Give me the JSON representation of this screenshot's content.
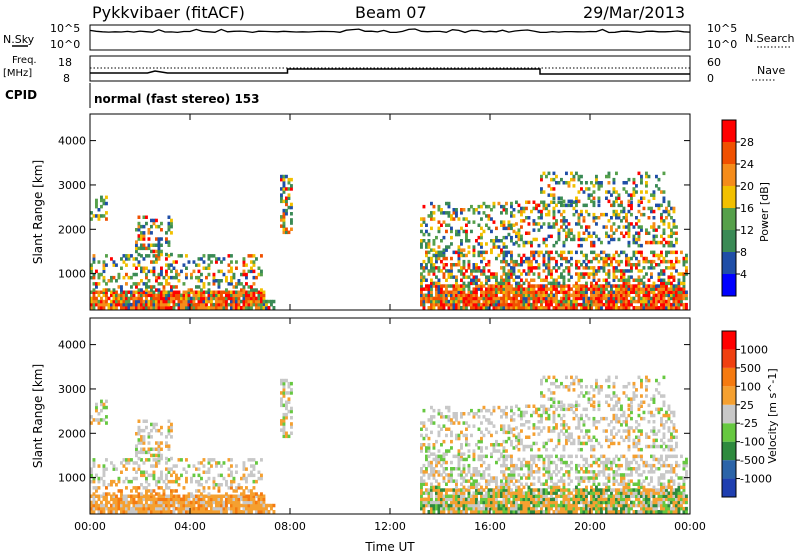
{
  "header": {
    "station": "Pykkvibaer (fitACF)",
    "beam": "Beam 07",
    "date": "29/Mar/2013"
  },
  "top_panels": {
    "nsky": {
      "left_label": "N.Sky",
      "right_label": "N.Search",
      "left_ticks": [
        "10^5",
        "10^0"
      ],
      "right_ticks": [
        "10^5",
        "10^0"
      ]
    },
    "freq": {
      "left_label_1": "Freq.",
      "left_label_2": "[MHz]",
      "right_label": "Nave",
      "left_ticks": [
        "18",
        "8"
      ],
      "right_ticks": [
        "60",
        "0"
      ]
    },
    "cpid": {
      "label": "CPID",
      "value": "normal (fast stereo) 153"
    }
  },
  "chart_data": [
    {
      "type": "heatmap",
      "name": "power",
      "ylabel": "Slant Range [km]",
      "ylim": [
        180,
        4600
      ],
      "yticks": [
        1000,
        2000,
        3000,
        4000
      ],
      "xlim": [
        0,
        24
      ],
      "xticks": [
        0,
        4,
        8,
        12,
        16,
        20,
        24
      ],
      "colorbar": {
        "label": "Power [dB]",
        "ticks": [
          "4",
          "8",
          "12",
          "16",
          "20",
          "24",
          "28"
        ],
        "colors": [
          "#0000ff",
          "#1f4ea7",
          "#3a8a55",
          "#56a04a",
          "#f2c000",
          "#f58c1a",
          "#f05000",
          "#ff0000"
        ]
      }
    },
    {
      "type": "heatmap",
      "name": "velocity",
      "ylabel": "Slant Range [km]",
      "xlabel": "Time UT",
      "ylim": [
        180,
        4600
      ],
      "yticks": [
        1000,
        2000,
        3000,
        4000
      ],
      "xlim": [
        0,
        24
      ],
      "xticks": [
        0,
        4,
        8,
        12,
        16,
        20,
        24
      ],
      "xticklabels": [
        "00:00",
        "04:00",
        "08:00",
        "12:00",
        "16:00",
        "20:00",
        "00:00"
      ],
      "colorbar": {
        "label": "Velocity [m s^-1]",
        "ticks": [
          "1000",
          "500",
          "100",
          "25",
          "-25",
          "-100",
          "-500",
          "-1000"
        ],
        "colors": [
          "#1f3fb0",
          "#2b64a8",
          "#2e8a3e",
          "#66c840",
          "#c8c8c8",
          "#f5a030",
          "#f57a10",
          "#f04010",
          "#ff0000"
        ]
      }
    }
  ]
}
